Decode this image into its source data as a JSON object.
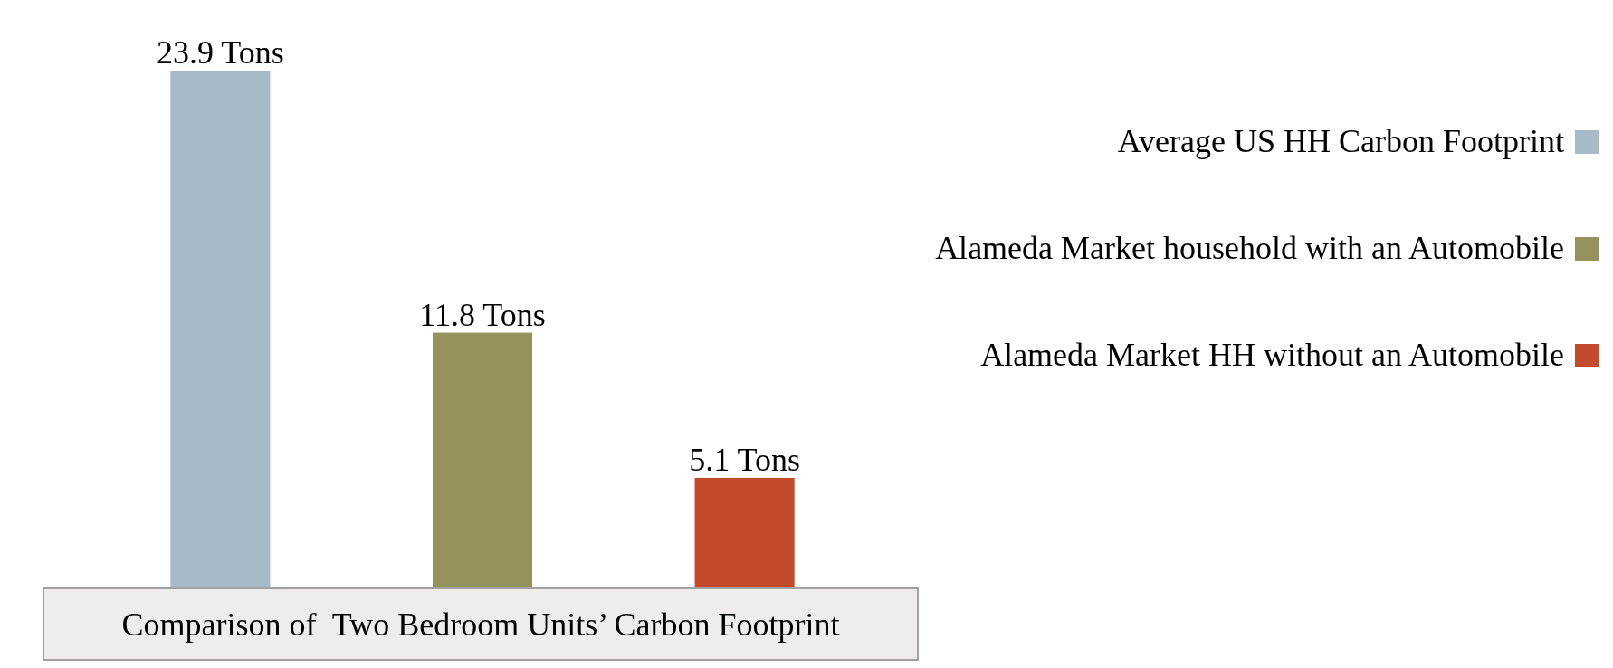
{
  "chart_data": {
    "type": "bar",
    "title": "Comparison of  Two Bedroom Units’ Carbon Footprint",
    "categories": [
      null,
      null,
      null
    ],
    "stacked": true,
    "legend": "right",
    "series": [
      {
        "name": "Average US HH Carbon Footprint",
        "color": "#a7bac8",
        "values": [
          23.9,
          null,
          null
        ],
        "value_labels": [
          "23.9 Tons",
          null,
          null
        ]
      },
      {
        "name": "Alameda Market household with an Automobile",
        "color": "#96925d",
        "values": [
          null,
          11.8,
          null
        ],
        "value_labels": [
          null,
          "11.8 Tons",
          null
        ]
      },
      {
        "name": "Alameda Market HH without an Automobile",
        "color": "#c24b2c",
        "values": [
          null,
          null,
          5.1
        ],
        "value_labels": [
          null,
          null,
          "5.1 Tons"
        ]
      }
    ]
  }
}
